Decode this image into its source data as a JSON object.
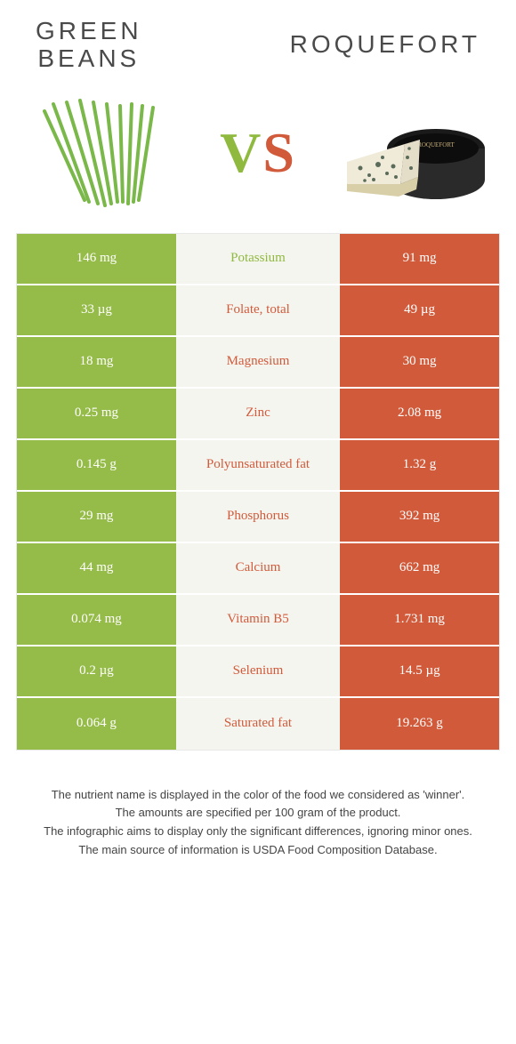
{
  "colors": {
    "left_bg": "#95bb48",
    "right_bg": "#d15a3a",
    "mid_bg": "#f5f5f0",
    "left_text": "#8fb93f",
    "right_text": "#d15a3a"
  },
  "header": {
    "left_title_line1": "GREEN",
    "left_title_line2": "BEANS",
    "right_title": "ROQUEFORT",
    "vs_v": "V",
    "vs_s": "S"
  },
  "rows": [
    {
      "left": "146 mg",
      "label": "Potassium",
      "right": "91 mg",
      "winner": "left"
    },
    {
      "left": "33 µg",
      "label": "Folate, total",
      "right": "49 µg",
      "winner": "right"
    },
    {
      "left": "18 mg",
      "label": "Magnesium",
      "right": "30 mg",
      "winner": "right"
    },
    {
      "left": "0.25 mg",
      "label": "Zinc",
      "right": "2.08 mg",
      "winner": "right"
    },
    {
      "left": "0.145 g",
      "label": "Polyunsaturated fat",
      "right": "1.32 g",
      "winner": "right"
    },
    {
      "left": "29 mg",
      "label": "Phosphorus",
      "right": "392 mg",
      "winner": "right"
    },
    {
      "left": "44 mg",
      "label": "Calcium",
      "right": "662 mg",
      "winner": "right"
    },
    {
      "left": "0.074 mg",
      "label": "Vitamin B5",
      "right": "1.731 mg",
      "winner": "right"
    },
    {
      "left": "0.2 µg",
      "label": "Selenium",
      "right": "14.5 µg",
      "winner": "right"
    },
    {
      "left": "0.064 g",
      "label": "Saturated fat",
      "right": "19.263 g",
      "winner": "right"
    }
  ],
  "footer": {
    "line1": "The nutrient name is displayed in the color of the food we considered as 'winner'.",
    "line2": "The amounts are specified per 100 gram of the product.",
    "line3": "The infographic aims to display only the significant differences, ignoring minor ones.",
    "line4": "The main source of information is USDA Food Composition Database."
  }
}
